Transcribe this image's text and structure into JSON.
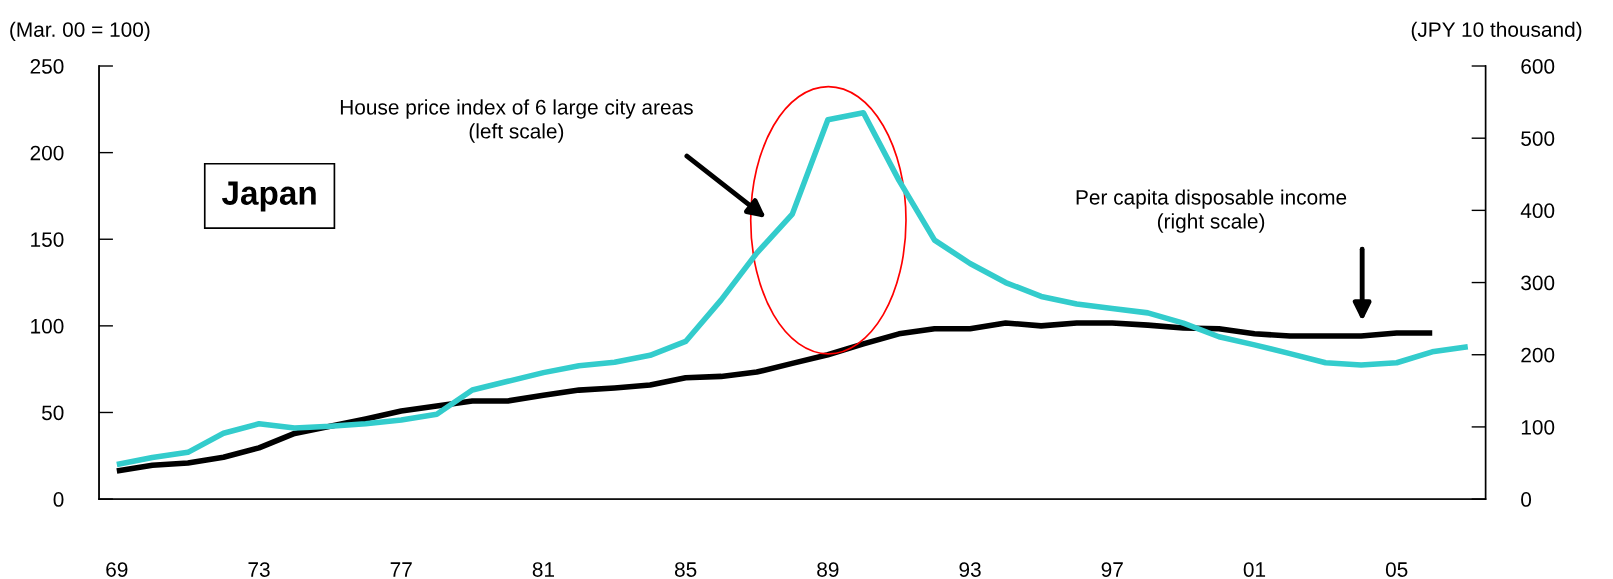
{
  "chart_data": {
    "type": "line",
    "ylabel": "(Mar. 00 = 100)",
    "y2label": "(JPY 10 thousand)",
    "categories": [
      "69",
      null,
      null,
      null,
      "73",
      null,
      null,
      null,
      "77",
      null,
      null,
      null,
      "81",
      null,
      null,
      null,
      "85",
      null,
      null,
      null,
      "89",
      null,
      null,
      null,
      "93",
      null,
      null,
      null,
      "97",
      null,
      null,
      null,
      "01",
      null,
      null,
      null,
      "05",
      null,
      null
    ],
    "series": [
      {
        "color": "#33cccc",
        "values": [
          20,
          24,
          27,
          38,
          43.5,
          41,
          42,
          43.5,
          45.6,
          49,
          63,
          68,
          73,
          77,
          79,
          83,
          91,
          115,
          142,
          164.5,
          219,
          223,
          184,
          149.5,
          136,
          125,
          117,
          112.6,
          110,
          107.5,
          101.6,
          93.7,
          89,
          84,
          78.7,
          77.4,
          78.7,
          85,
          88
        ]
      },
      {
        "color": "#000000",
        "axis": "y2",
        "values": [
          39,
          47,
          50,
          58,
          71,
          91,
          101,
          111,
          122,
          129,
          136,
          136,
          144,
          151,
          154,
          158,
          168,
          170,
          176,
          188,
          200,
          215,
          229,
          236,
          236,
          244,
          240,
          244,
          244,
          241,
          237,
          236,
          229,
          226,
          226,
          226,
          230,
          230,
          null
        ]
      }
    ],
    "ylim": [
      0,
      250
    ],
    "yticks": [
      0,
      50,
      100,
      150,
      200,
      250
    ],
    "y2lim": [
      0,
      600
    ],
    "y2ticks": [
      0,
      100,
      200,
      300,
      400,
      500,
      600
    ],
    "annotations": [
      "Japan",
      "House price index of 6 large city areas\n(left scale)",
      "Per capita disposable income\n(right scale)"
    ],
    "grid": false,
    "legend": false
  }
}
